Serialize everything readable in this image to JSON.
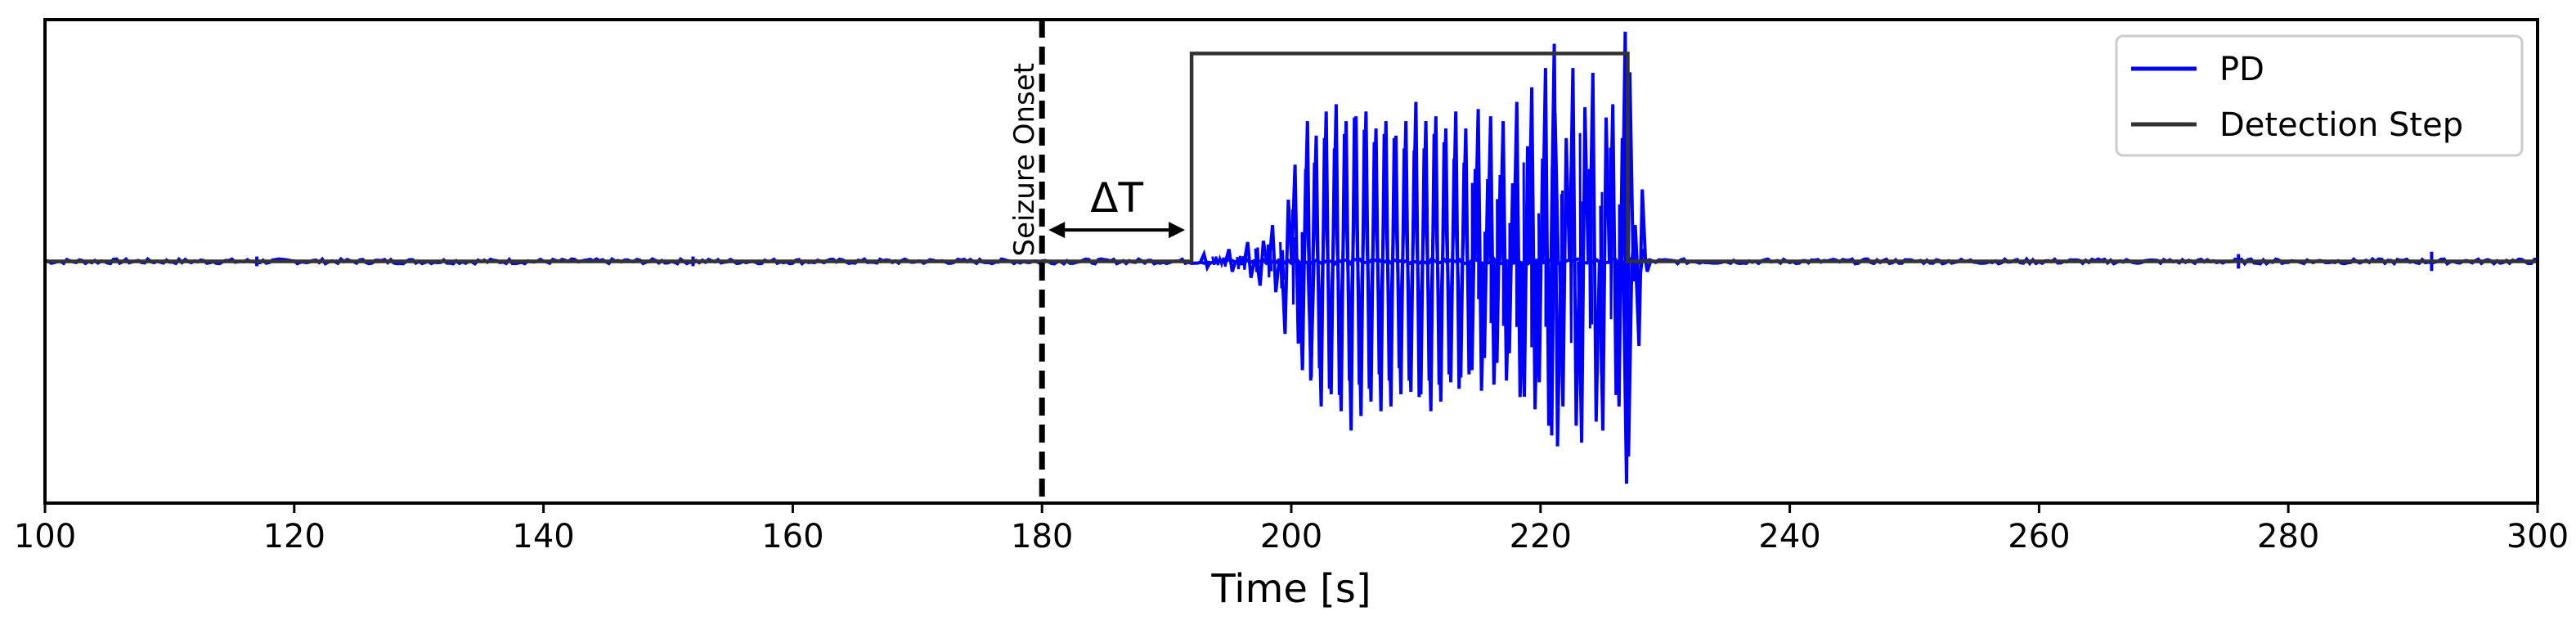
{
  "chart_data": {
    "type": "line",
    "xlabel": "Time [s]",
    "xlim": [
      100,
      300
    ],
    "xticks": [
      100,
      120,
      140,
      160,
      180,
      200,
      220,
      240,
      260,
      280,
      300
    ],
    "ylim": [
      -1.0,
      1.0
    ],
    "yticks_visible": false,
    "grid": false,
    "legend": {
      "location": "top-right",
      "entries": [
        {
          "name": "PD",
          "color": "#0000ff"
        },
        {
          "name": "Detection Step",
          "color": "#333333"
        }
      ]
    },
    "series": [
      {
        "name": "PD",
        "color": "#0000ff",
        "baseline": 0,
        "quiet_noise_amplitude": 0.01,
        "bursts": [
          {
            "x": 193.0,
            "y": 0.03
          },
          {
            "x": 195.0,
            "y": 0.05
          },
          {
            "x": 196.5,
            "y": 0.08
          },
          {
            "x": 197.5,
            "y": -0.1
          },
          {
            "x": 198.5,
            "y": 0.15
          },
          {
            "x": 199.5,
            "y": -0.3
          },
          {
            "x": 200.3,
            "y": 0.4
          },
          {
            "x": 200.9,
            "y": -0.45
          },
          {
            "x": 201.3,
            "y": 0.58
          },
          {
            "x": 201.6,
            "y": -0.48
          },
          {
            "x": 202.0,
            "y": 0.52
          },
          {
            "x": 202.4,
            "y": -0.6
          },
          {
            "x": 202.8,
            "y": 0.62
          },
          {
            "x": 203.2,
            "y": -0.55
          },
          {
            "x": 203.6,
            "y": 0.65
          },
          {
            "x": 204.0,
            "y": -0.62
          },
          {
            "x": 204.4,
            "y": 0.58
          },
          {
            "x": 204.8,
            "y": -0.7
          },
          {
            "x": 205.2,
            "y": 0.6
          },
          {
            "x": 205.6,
            "y": -0.64
          },
          {
            "x": 206.0,
            "y": 0.62
          },
          {
            "x": 206.4,
            "y": -0.58
          },
          {
            "x": 206.8,
            "y": 0.55
          },
          {
            "x": 207.2,
            "y": -0.62
          },
          {
            "x": 207.6,
            "y": 0.58
          },
          {
            "x": 208.0,
            "y": -0.6
          },
          {
            "x": 208.4,
            "y": 0.52
          },
          {
            "x": 208.8,
            "y": -0.55
          },
          {
            "x": 209.2,
            "y": 0.58
          },
          {
            "x": 209.6,
            "y": -0.54
          },
          {
            "x": 210.0,
            "y": 0.66
          },
          {
            "x": 210.4,
            "y": -0.55
          },
          {
            "x": 210.8,
            "y": 0.58
          },
          {
            "x": 211.2,
            "y": -0.62
          },
          {
            "x": 211.6,
            "y": 0.6
          },
          {
            "x": 212.0,
            "y": -0.58
          },
          {
            "x": 212.4,
            "y": 0.55
          },
          {
            "x": 212.8,
            "y": -0.5
          },
          {
            "x": 213.2,
            "y": 0.62
          },
          {
            "x": 213.6,
            "y": -0.48
          },
          {
            "x": 214.0,
            "y": 0.55
          },
          {
            "x": 214.5,
            "y": -0.45
          },
          {
            "x": 215.0,
            "y": 0.63
          },
          {
            "x": 215.5,
            "y": -0.4
          },
          {
            "x": 216.0,
            "y": 0.6
          },
          {
            "x": 216.5,
            "y": -0.42
          },
          {
            "x": 217.0,
            "y": 0.58
          },
          {
            "x": 217.5,
            "y": -0.38
          },
          {
            "x": 218.1,
            "y": 0.66
          },
          {
            "x": 218.7,
            "y": -0.56
          },
          {
            "x": 219.3,
            "y": 0.72
          },
          {
            "x": 219.9,
            "y": -0.5
          },
          {
            "x": 220.4,
            "y": 0.8
          },
          {
            "x": 220.9,
            "y": -0.72
          },
          {
            "x": 221.1,
            "y": 0.9
          },
          {
            "x": 221.8,
            "y": -0.6
          },
          {
            "x": 222.6,
            "y": 0.8
          },
          {
            "x": 223.3,
            "y": -0.75
          },
          {
            "x": 224.2,
            "y": 0.78
          },
          {
            "x": 225.0,
            "y": -0.7
          },
          {
            "x": 225.8,
            "y": 0.65
          },
          {
            "x": 226.3,
            "y": -0.6
          },
          {
            "x": 226.8,
            "y": 0.95
          },
          {
            "x": 226.9,
            "y": -0.92
          },
          {
            "x": 227.6,
            "y": 0.15
          },
          {
            "x": 227.9,
            "y": -0.35
          },
          {
            "x": 228.3,
            "y": 0.05
          }
        ],
        "small_blips": [
          {
            "x": 117.0,
            "y": 0.02
          },
          {
            "x": 152.0,
            "y": 0.02
          },
          {
            "x": 276.0,
            "y": 0.03
          },
          {
            "x": 291.5,
            "y": 0.04
          }
        ]
      },
      {
        "name": "Detection Step",
        "color": "#333333",
        "x": [
          100,
          192,
          192,
          227,
          227,
          300
        ],
        "y": [
          0,
          0,
          0.86,
          0.86,
          0,
          0
        ]
      }
    ],
    "annotations": [
      {
        "type": "vline",
        "x": 180,
        "style": "dashed",
        "label": "Seizure Onset"
      },
      {
        "type": "double-arrow",
        "x_start": 180,
        "x_end": 192,
        "y": 0.13,
        "label": "ΔT"
      }
    ]
  }
}
